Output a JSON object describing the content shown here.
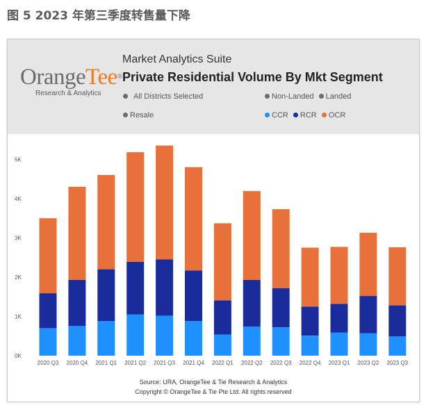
{
  "figure_caption": "图 5 2023 年第三季度转售量下降",
  "header": {
    "logo_main": "OrangeTee",
    "logo_orange": "Tee",
    "logo_grey": "Orange",
    "logo_reg": "®",
    "logo_sub": "Research & Analytics",
    "suite": "Market Analytics Suite",
    "title": "Private Residential Volume By Mkt Segment"
  },
  "filters": {
    "districts": "All Districts Selected",
    "non_landed": "Non-Landed",
    "landed": "Landed",
    "resale": "Resale"
  },
  "colors": {
    "filter_dot": "#6b6b6b",
    "CCR": "#1e90ff",
    "RCR": "#1a2c9c",
    "OCR": "#e8703a"
  },
  "footer": {
    "source": "Source: URA, OrangeTee & Tie Research & Analytics",
    "copyright": "Copyright © OrangeTee & Tie Pte Ltd. All rights reserved"
  },
  "chart_data": {
    "type": "bar",
    "stacked": true,
    "title": "Private Residential Volume By Mkt Segment",
    "categories": [
      "2020 Q3",
      "2020 Q4",
      "2021 Q1",
      "2021 Q2",
      "2021 Q3",
      "2021 Q4",
      "2022 Q1",
      "2022 Q2",
      "2022 Q3",
      "2022 Q4",
      "2023 Q1",
      "2023 Q2",
      "2023 Q3"
    ],
    "series": [
      {
        "name": "CCR",
        "values": [
          700,
          760,
          880,
          1050,
          1020,
          880,
          540,
          740,
          720,
          510,
          590,
          570,
          490
        ]
      },
      {
        "name": "RCR",
        "values": [
          890,
          1170,
          1320,
          1340,
          1430,
          1290,
          870,
          1190,
          1000,
          740,
          730,
          950,
          790
        ]
      },
      {
        "name": "OCR",
        "values": [
          1910,
          2370,
          2400,
          2790,
          2900,
          2630,
          1960,
          2260,
          2010,
          1500,
          1450,
          1610,
          1480
        ]
      }
    ],
    "ylim": [
      0,
      5500
    ],
    "yticks": [
      0,
      1000,
      2000,
      3000,
      4000,
      5000
    ],
    "ytick_labels": [
      "0K",
      "1K",
      "2K",
      "3K",
      "4K",
      "5K"
    ],
    "legend_position": "top-right",
    "grid": false
  }
}
